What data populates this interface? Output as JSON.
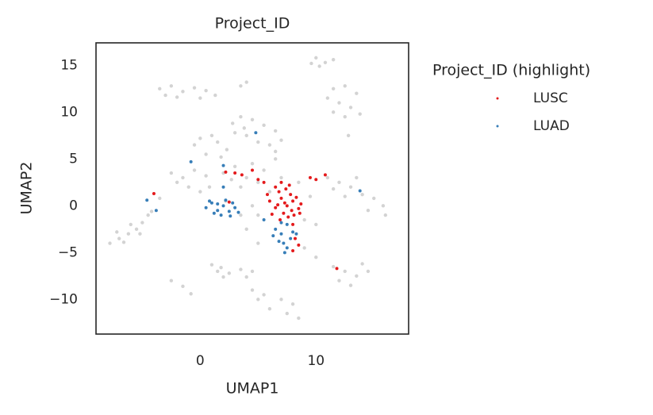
{
  "chart_data": {
    "type": "scatter",
    "title": "Project_ID",
    "x_label": "UMAP1",
    "y_label": "UMAP2",
    "legend_title": "Project_ID (highlight)",
    "legend": "outside-right",
    "xlim": [
      -9,
      18
    ],
    "ylim": [
      -13.7,
      17.4
    ],
    "xticks": [
      0,
      10
    ],
    "yticks": [
      {
        "value": -10,
        "label": "−10"
      },
      {
        "value": -5,
        "label": "−5"
      },
      0,
      5,
      10,
      15
    ],
    "grid": false,
    "series": [
      {
        "color": "#d3d3d3",
        "x": [
          10,
          10.8,
          11.5,
          9.6,
          10.3,
          -3.5,
          -2.5,
          -1.5,
          -0.5,
          0.5,
          1.3,
          -2,
          -3,
          0,
          3.5,
          4,
          11.5,
          12.5,
          13.5,
          12,
          13,
          11.5,
          12.5,
          13.8,
          11,
          12.8,
          2.8,
          3.5,
          4.5,
          5.5,
          6.5,
          7,
          6,
          4,
          3,
          5,
          6.5,
          3.8,
          1,
          0,
          -0.5,
          1.5,
          2.3,
          0.5,
          1.8,
          -2.5,
          -1.5,
          -0.5,
          0.5,
          -1,
          0,
          -2,
          0.8,
          2,
          3,
          4,
          5,
          5.5,
          4.5,
          3.5,
          6,
          2.7,
          11,
          12,
          13,
          14,
          15,
          15.8,
          12.5,
          13.5,
          11.5,
          14.5,
          16,
          -7.8,
          -7,
          -6.2,
          -5.5,
          -5,
          -4.5,
          -6,
          -7.2,
          -4.2,
          -6.6,
          -5.2,
          -3.5,
          1,
          1.8,
          1.5,
          2.5,
          3.5,
          4.5,
          2,
          4,
          -2.5,
          -1.5,
          -0.8,
          4.5,
          5.5,
          7,
          8,
          6,
          7.5,
          5,
          8.5,
          11.5,
          12.5,
          13.5,
          14.5,
          13,
          12,
          14,
          4.5,
          3.5,
          4,
          5,
          9,
          10,
          9.5,
          8.5,
          7,
          5,
          9,
          10,
          6.5,
          2.2
        ],
        "values": [
          15.8,
          15.3,
          15.6,
          15.2,
          14.9,
          12.5,
          12.8,
          12.2,
          12.6,
          12.3,
          11.8,
          11.6,
          11.8,
          11.5,
          12.8,
          13.2,
          12.5,
          12.8,
          12,
          11,
          10.5,
          10,
          9.5,
          9.8,
          11.5,
          7.5,
          8.8,
          9.5,
          9.2,
          8.6,
          8,
          7,
          6.5,
          7.5,
          7.8,
          6.8,
          5.8,
          8.3,
          7.5,
          7.2,
          6.5,
          6.8,
          6,
          5.5,
          5.2,
          3.5,
          3,
          3.8,
          3.2,
          2,
          1.5,
          2.5,
          2,
          3.5,
          4.2,
          3,
          2.5,
          3.8,
          4.5,
          2,
          1.5,
          2.8,
          3,
          2.5,
          2,
          1.2,
          0.8,
          0,
          1,
          3,
          1.8,
          -0.5,
          -1,
          -4,
          -3.5,
          -3,
          -2.5,
          -1.8,
          -1,
          -2,
          -2.8,
          -0.6,
          -3.9,
          -3,
          0.8,
          -6.3,
          -6.6,
          -7,
          -7.2,
          -6.8,
          -7,
          -7.6,
          -7.6,
          -8,
          -8.6,
          -9.4,
          -9,
          -9.5,
          -10,
          -10.5,
          -11,
          -11.5,
          -10,
          -12,
          -6.5,
          -7,
          -7.5,
          -7,
          -8.5,
          -8,
          -6.2,
          0,
          -1,
          -2.5,
          -1,
          -1.5,
          -2,
          1,
          2.5,
          3,
          -4,
          -4.5,
          -5.5,
          5,
          0.5
        ]
      },
      {
        "name": "LUSC",
        "color": "#e41a1c",
        "x": [
          6,
          6.5,
          7,
          7.5,
          8,
          8.5,
          7.2,
          6.8,
          7.8,
          8.3,
          6.2,
          7.6,
          8.7,
          6.5,
          7,
          5.8,
          7.9,
          7.3,
          6.7,
          8.1,
          7.4,
          5.5,
          8.6,
          6.9,
          7.7,
          8,
          8.2,
          8.5,
          3,
          3.6,
          4.5,
          2.2,
          5,
          9.5,
          10,
          10.8,
          11.8,
          -4,
          2.5,
          8
        ],
        "values": [
          0.5,
          -0.2,
          0.8,
          0,
          0.5,
          -0.3,
          -0.8,
          1.5,
          1.2,
          0.9,
          -0.9,
          -1.2,
          0.2,
          2,
          2.5,
          1.2,
          -0.5,
          0.3,
          0.1,
          -1,
          1.8,
          2.5,
          -0.8,
          -1.5,
          2.2,
          -2,
          -3.5,
          -4.2,
          3.5,
          3.3,
          3.8,
          3.6,
          2.8,
          3,
          2.8,
          3.3,
          -6.7,
          1.3,
          0.4,
          -4.8
        ]
      },
      {
        "name": "LUAD",
        "color": "#377eb8",
        "x": [
          0.5,
          1,
          1.5,
          2,
          2.5,
          3,
          1.2,
          2.2,
          1.8,
          2.8,
          0.8,
          3.3,
          1.5,
          2.6,
          6.5,
          7,
          7.5,
          7.8,
          7.2,
          6.8,
          8,
          7.5,
          7.3,
          6.3,
          8.3,
          7,
          4.8,
          -0.8,
          13.8,
          -4.6,
          2,
          5.5,
          2,
          -3.8
        ],
        "values": [
          -0.2,
          0.3,
          -0.5,
          0,
          -0.6,
          -0.2,
          -0.8,
          0.6,
          -1,
          0.3,
          0.5,
          -0.7,
          0.2,
          -1.1,
          -2.5,
          -3,
          -2,
          -3.5,
          -4,
          -3.8,
          -2.8,
          -4.5,
          -5,
          -3.2,
          -3,
          -1.8,
          7.8,
          4.7,
          1.6,
          0.6,
          4.3,
          -1.5,
          2,
          -0.5
        ]
      }
    ]
  }
}
